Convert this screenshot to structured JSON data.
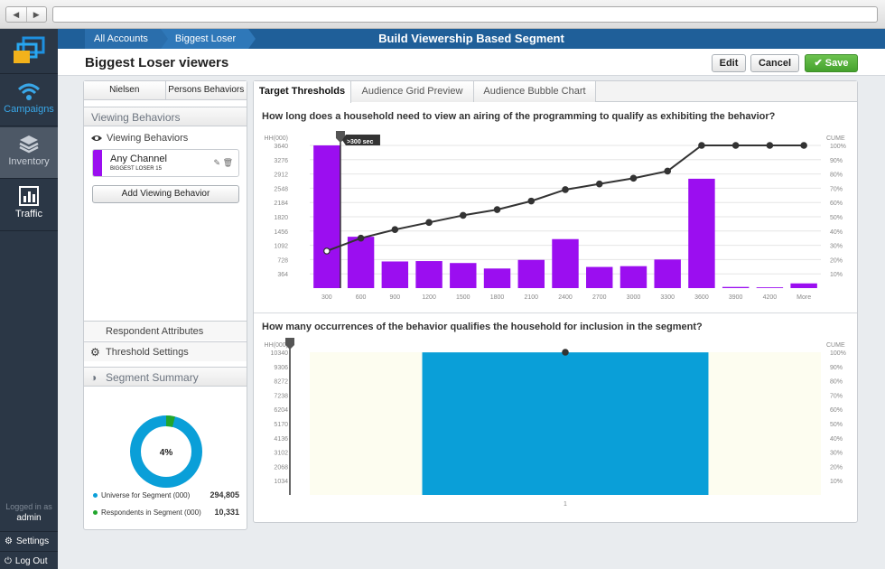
{
  "app": {
    "title": "Build Viewership Based Segment",
    "breadcrumbs": [
      "All Accounts",
      "Biggest Loser"
    ],
    "page_title": "Biggest Loser viewers"
  },
  "sidebar": {
    "items": [
      {
        "label": "Campaigns",
        "icon": "wifi-signal-icon"
      },
      {
        "label": "Inventory",
        "icon": "layers-stack-icon"
      },
      {
        "label": "Traffic",
        "icon": "bar-chart-icon"
      }
    ],
    "logged_in_label": "Logged in as",
    "user": "admin",
    "settings_label": "Settings",
    "logout_label": "Log Out"
  },
  "toolbar": {
    "edit": "Edit",
    "cancel": "Cancel",
    "save": "Save"
  },
  "left_panel": {
    "tabs": [
      "Nielsen",
      "Persons Behaviors"
    ],
    "viewing_behaviors_header": "Viewing Behaviors",
    "viewing_behaviors_label": "Viewing Behaviors",
    "behavior": {
      "name": "Any Channel",
      "sub": "BIGGEST LOSER 15",
      "color": "#9b0ef0"
    },
    "add_behavior": "Add Viewing Behavior",
    "respondent_attributes": "Respondent Attributes",
    "threshold_settings": "Threshold Settings",
    "segment_summary_header": "Segment Summary",
    "donut_percent_label": "4%",
    "donut_percent": 4,
    "universe_label": "Universe for Segment (000)",
    "universe_value": "294,805",
    "respondents_label": "Respondents in Segment (000)",
    "respondents_value": "10,331",
    "colors": {
      "universe": "#0a9fd8",
      "respondents": "#21a62c"
    }
  },
  "main": {
    "tabs": [
      "Target Thresholds",
      "Audience Grid Preview",
      "Audience Bubble Chart"
    ],
    "active_tab": 0,
    "q1": "How long does a household need to view an airing of the programming to qualify as exhibiting the behavior?",
    "q2": "How many occurrences of the behavior qualifies the household for inclusion in the segment?"
  },
  "chart_data": [
    {
      "type": "bar",
      "title": "",
      "ylabel": "HH(000)",
      "y2label": "CUME",
      "categories": [
        "300",
        "600",
        "900",
        "1200",
        "1500",
        "1800",
        "2100",
        "2400",
        "2700",
        "3000",
        "3300",
        "3600",
        "3900",
        "4200",
        "More"
      ],
      "yticks": [
        "3640",
        "3276",
        "2912",
        "2548",
        "2184",
        "1820",
        "1456",
        "1092",
        "728",
        "364"
      ],
      "y2ticks": [
        "100%",
        "90%",
        "80%",
        "70%",
        "60%",
        "50%",
        "40%",
        "30%",
        "20%",
        "10%"
      ],
      "ylim": [
        0,
        3640
      ],
      "series": [
        {
          "type": "bar",
          "color": "#9b0ef0",
          "values": [
            3640,
            1310,
            680,
            690,
            640,
            500,
            720,
            1250,
            540,
            560,
            730,
            2790,
            30,
            20,
            120
          ]
        },
        {
          "type": "line",
          "color": "#333333",
          "values": [
            26,
            35,
            41,
            46,
            51,
            55,
            61,
            69,
            73,
            77,
            82,
            100,
            100,
            100,
            101
          ]
        }
      ],
      "threshold_label": ">300 sec",
      "threshold_index": 0
    },
    {
      "type": "bar",
      "title": "",
      "ylabel": "HH(000)",
      "y2label": "CUME",
      "categories": [
        "1"
      ],
      "yticks": [
        "10340",
        "9306",
        "8272",
        "7238",
        "6204",
        "5170",
        "4136",
        "3102",
        "2068",
        "1034"
      ],
      "y2ticks": [
        "100%",
        "90%",
        "80%",
        "70%",
        "60%",
        "50%",
        "40%",
        "30%",
        "20%",
        "10%"
      ],
      "ylim": [
        0,
        10340
      ],
      "series": [
        {
          "type": "bar",
          "color": "#0a9fd8",
          "values": [
            10331
          ]
        },
        {
          "type": "line",
          "color": "#333333",
          "values": [
            100
          ]
        }
      ]
    }
  ]
}
